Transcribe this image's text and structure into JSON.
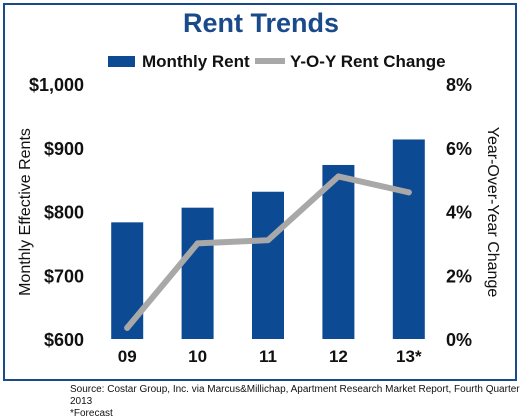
{
  "chart_data": {
    "type": "bar",
    "title": "Rent Trends",
    "categories": [
      "09",
      "10",
      "11",
      "12",
      "13*"
    ],
    "series": [
      {
        "name": "Monthly Rent",
        "type": "bar",
        "axis": "left",
        "values": [
          783,
          806,
          831,
          873,
          913
        ],
        "color": "#0d4a94"
      },
      {
        "name": "Y-O-Y Rent Change",
        "type": "line",
        "axis": "right",
        "values": [
          0.35,
          3.0,
          3.1,
          5.1,
          4.6
        ],
        "color": "#a8a8a8"
      }
    ],
    "ylabel": "Monthly Effective Rents",
    "ylabel_right": "Year-Over-Year Change",
    "ylim": [
      600,
      1000
    ],
    "ylim_right": [
      0,
      8
    ],
    "yticks": [
      "$600",
      "$700",
      "$800",
      "$900",
      "$1,000"
    ],
    "yticks_right": [
      "0%",
      "2%",
      "4%",
      "6%",
      "8%"
    ],
    "grid": false,
    "legend_position": "top"
  },
  "source_note": "Source: Costar Group, Inc. via Marcus&Millichap, Apartment Research Market Report, Fourth Quarter 2013",
  "forecast_note": "*Forecast"
}
